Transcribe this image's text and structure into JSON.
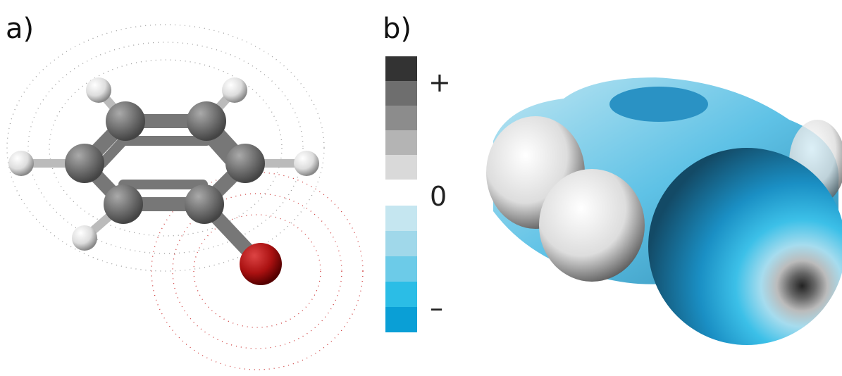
{
  "panels": [
    {
      "label": "a)"
    },
    {
      "label": "b)",
      "colorbar": {
        "labels": [
          "+",
          "0",
          "–"
        ]
      }
    }
  ]
}
